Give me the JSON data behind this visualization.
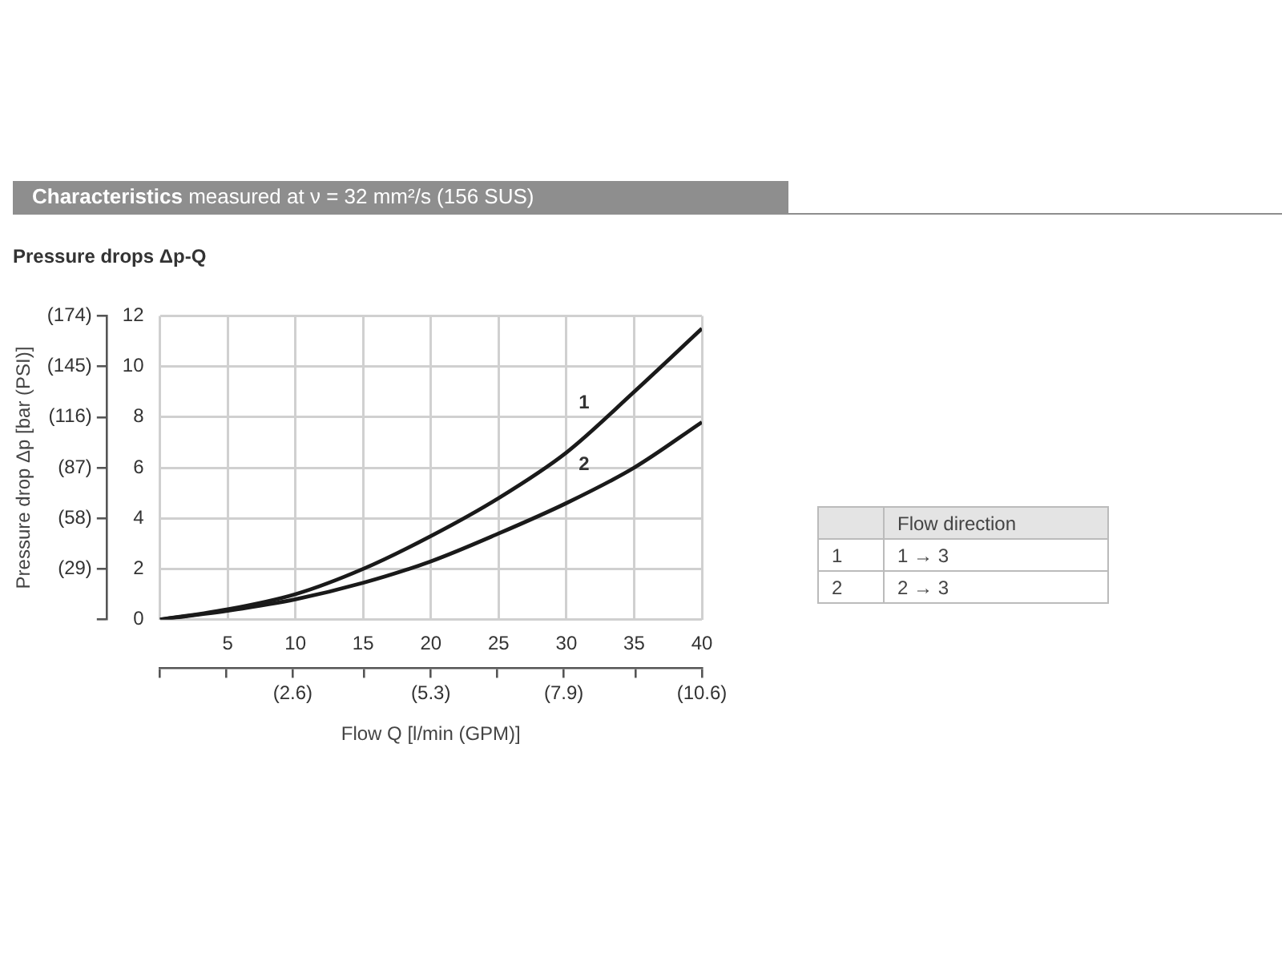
{
  "chart_data": {
    "type": "line",
    "title": "Characteristics",
    "subtitle": "measured at ν = 32 mm²/s (156 SUS)",
    "xlabel": "Flow Q [l/min (GPM)]",
    "y2label": "Pressure drop Δp [bar (PSI)]",
    "annotations": [
      "Pressure drops Δp-Q",
      "Flow direction",
      "1",
      "1 → 3",
      "2",
      "2 → 3"
    ],
    "x": [
      0,
      5,
      10,
      15,
      20,
      25,
      30,
      35,
      40
    ],
    "series": [
      {
        "name": "1",
        "color": "#1a1a1a",
        "values": [
          0,
          0.4,
          1.0,
          2.0,
          3.3,
          4.8,
          6.6,
          9.0,
          11.5
        ]
      },
      {
        "name": "2",
        "color": "#1a1a1a",
        "values": [
          0,
          0.35,
          0.8,
          1.45,
          2.3,
          3.4,
          4.6,
          6.0,
          7.8
        ]
      }
    ],
    "xlim": [
      0,
      40
    ],
    "xticks": [
      {
        "value": 0,
        "label": null
      },
      5,
      10,
      15,
      20,
      25,
      30,
      35,
      40
    ],
    "ylim": [
      0,
      12
    ],
    "yticks": [
      0,
      2,
      4,
      6,
      8,
      10,
      12
    ],
    "x2lim": [
      0,
      10.6
    ],
    "x2ticks": [
      {
        "value": 0,
        "label": null
      },
      {
        "value": 1.3,
        "label": null
      },
      {
        "value": 2.6,
        "label": "(2.6)"
      },
      {
        "value": 4.0,
        "label": null
      },
      {
        "value": 5.3,
        "label": "(5.3)"
      },
      {
        "value": 6.6,
        "label": null
      },
      {
        "value": 7.9,
        "label": "(7.9)"
      },
      {
        "value": 9.3,
        "label": null
      },
      {
        "value": 10.6,
        "label": "(10.6)"
      }
    ],
    "y2lim": [
      0,
      174
    ],
    "y2ticks": [
      {
        "value": 0,
        "label": null
      },
      {
        "value": 29,
        "label": "(29)"
      },
      {
        "value": 58,
        "label": "(58)"
      },
      {
        "value": 87,
        "label": "(87)"
      },
      {
        "value": 116,
        "label": "(116)"
      },
      {
        "value": 145,
        "label": "(145)"
      },
      {
        "value": 174,
        "label": "(174)"
      }
    ],
    "grid": true,
    "legend": false,
    "marker": "none",
    "line_style": "solid"
  }
}
